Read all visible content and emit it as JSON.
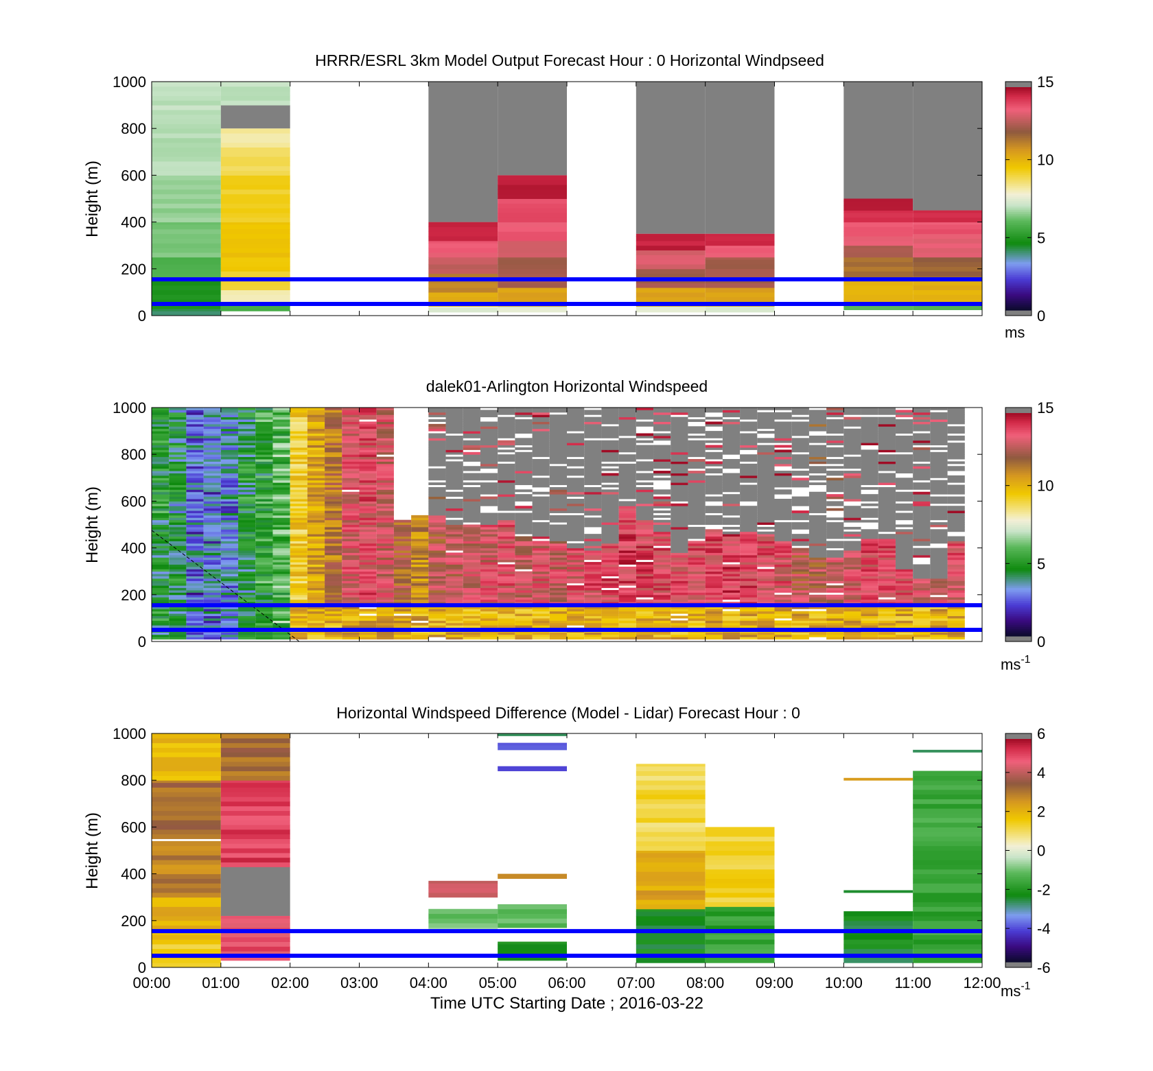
{
  "figure": {
    "xlabel": "Time UTC  Starting Date ; 2016-03-22",
    "x_ticks": [
      "00:00",
      "01:00",
      "02:00",
      "03:00",
      "04:00",
      "05:00",
      "06:00",
      "07:00",
      "08:00",
      "09:00",
      "10:00",
      "11:00",
      "12:00"
    ],
    "boundary_lines_m": [
      50,
      155
    ],
    "boundary_line_color": "#0000ff"
  },
  "chart_data": [
    {
      "type": "heatmap",
      "title": "HRRR/ESRL 3km Model Output   Forecast Hour : 0 Horizontal Windpseed",
      "xlabel": "",
      "ylabel": "Height (m)",
      "x_hours": [
        0,
        12
      ],
      "ylim": [
        0,
        1000
      ],
      "y_ticks": [
        0,
        200,
        400,
        600,
        800,
        1000
      ],
      "colorbar": {
        "min": 0,
        "max": 15,
        "ticks": [
          0,
          5,
          10,
          15
        ],
        "unit": "ms",
        "unit_sup": ""
      },
      "missing_color": "#808080",
      "columns": [
        {
          "start_hour": 0,
          "end_hour": 1,
          "layers": [
            [
              0,
              30,
              4.0
            ],
            [
              30,
              160,
              4.8
            ],
            [
              160,
              250,
              5.8
            ],
            [
              250,
              400,
              6.3
            ],
            [
              400,
              600,
              6.6
            ],
            [
              600,
              800,
              6.9
            ],
            [
              800,
              1000,
              7.0
            ]
          ]
        },
        {
          "start_hour": 1,
          "end_hour": 2,
          "layers": [
            [
              20,
              50,
              5.5
            ],
            [
              50,
              110,
              8.0
            ],
            [
              110,
              190,
              9.3
            ],
            [
              190,
              400,
              9.7
            ],
            [
              400,
              600,
              9.3
            ],
            [
              600,
              720,
              8.9
            ],
            [
              720,
              800,
              8.3
            ],
            [
              800,
              900,
              "missing"
            ],
            [
              900,
              1000,
              7.0
            ]
          ]
        },
        {
          "start_hour": 4,
          "end_hour": 5,
          "layers": [
            [
              15,
              40,
              7.5
            ],
            [
              40,
              100,
              10.2
            ],
            [
              100,
              180,
              11.2
            ],
            [
              180,
              250,
              12.8
            ],
            [
              250,
              320,
              13.5
            ],
            [
              320,
              400,
              14.6
            ],
            [
              400,
              1000,
              "missing"
            ]
          ]
        },
        {
          "start_hour": 5,
          "end_hour": 6,
          "layers": [
            [
              15,
              40,
              7.5
            ],
            [
              40,
              120,
              10.5
            ],
            [
              120,
              250,
              12.3
            ],
            [
              250,
              320,
              13.2
            ],
            [
              320,
              400,
              13.6
            ],
            [
              400,
              500,
              13.9
            ],
            [
              500,
              600,
              14.6
            ],
            [
              600,
              1000,
              "missing"
            ]
          ]
        },
        {
          "start_hour": 7,
          "end_hour": 8,
          "layers": [
            [
              15,
              40,
              7.5
            ],
            [
              40,
              120,
              10.5
            ],
            [
              120,
              200,
              12.3
            ],
            [
              200,
              280,
              13.2
            ],
            [
              280,
              350,
              14.6
            ],
            [
              350,
              1000,
              "missing"
            ]
          ]
        },
        {
          "start_hour": 8,
          "end_hour": 9,
          "layers": [
            [
              15,
              40,
              7.5
            ],
            [
              40,
              120,
              10.5
            ],
            [
              120,
              250,
              12.3
            ],
            [
              250,
              300,
              13.6
            ],
            [
              300,
              350,
              14.4
            ],
            [
              350,
              1000,
              "missing"
            ]
          ]
        },
        {
          "start_hour": 10,
          "end_hour": 11,
          "layers": [
            [
              25,
              50,
              6.0
            ],
            [
              50,
              150,
              10.2
            ],
            [
              150,
              250,
              11.5
            ],
            [
              250,
              300,
              12.3
            ],
            [
              300,
              400,
              13.5
            ],
            [
              400,
              450,
              14.2
            ],
            [
              450,
              500,
              14.6
            ],
            [
              500,
              1000,
              "missing"
            ]
          ]
        },
        {
          "start_hour": 11,
          "end_hour": 12,
          "layers": [
            [
              25,
              50,
              6.0
            ],
            [
              50,
              150,
              10.2
            ],
            [
              150,
              250,
              11.8
            ],
            [
              250,
              350,
              13.3
            ],
            [
              350,
              400,
              13.7
            ],
            [
              400,
              450,
              14.4
            ],
            [
              450,
              1000,
              "missing"
            ]
          ]
        }
      ]
    },
    {
      "type": "heatmap",
      "title": "dalek01-Arlington  Horizontal Windspeed",
      "xlabel": "",
      "ylabel": "Height (m)",
      "x_hours": [
        0,
        12
      ],
      "ylim": [
        0,
        1000
      ],
      "y_ticks": [
        0,
        200,
        400,
        600,
        800,
        1000
      ],
      "colorbar": {
        "min": 0,
        "max": 15,
        "ticks": [
          0,
          5,
          10,
          15
        ],
        "unit": "ms",
        "unit_sup": "-1"
      },
      "missing_color": "#808080",
      "time_step_min": 15,
      "data_end_hour": 11.9,
      "columns": [
        {
          "start_hour": 0.0,
          "base_speed": 4.6,
          "top_m": 1000,
          "missing_above_m": null
        },
        {
          "start_hour": 0.25,
          "base_speed": 4.3,
          "top_m": 1000,
          "missing_above_m": null
        },
        {
          "start_hour": 0.5,
          "base_speed": 2.8,
          "top_m": 1000,
          "missing_above_m": null
        },
        {
          "start_hour": 0.75,
          "base_speed": 3.0,
          "top_m": 1000,
          "missing_above_m": null
        },
        {
          "start_hour": 1.0,
          "base_speed": 3.2,
          "top_m": 1000,
          "missing_above_m": null
        },
        {
          "start_hour": 1.25,
          "base_speed": 4.5,
          "top_m": 1000,
          "missing_above_m": null
        },
        {
          "start_hour": 1.5,
          "base_speed": 5.2,
          "top_m": 1000,
          "missing_above_m": null
        },
        {
          "start_hour": 1.75,
          "base_speed": 5.6,
          "top_m": 1000,
          "missing_above_m": null
        },
        {
          "start_hour": 2.0,
          "base_speed": 9.4,
          "top_m": 1000,
          "missing_above_m": null
        },
        {
          "start_hour": 2.25,
          "base_speed": 10.5,
          "top_m": 1000,
          "missing_above_m": null
        },
        {
          "start_hour": 2.5,
          "base_speed": 11.5,
          "top_m": 1000,
          "missing_above_m": null
        },
        {
          "start_hour": 2.75,
          "base_speed": 13.3,
          "top_m": 1000,
          "missing_above_m": 900
        },
        {
          "start_hour": 3.0,
          "base_speed": 13.6,
          "top_m": 1000,
          "missing_above_m": 500
        },
        {
          "start_hour": 3.25,
          "base_speed": 13.0,
          "top_m": 1000,
          "missing_above_m": 550
        },
        {
          "start_hour": 3.5,
          "base_speed": 12.0,
          "top_m": 520,
          "missing_above_m": null
        },
        {
          "start_hour": 3.75,
          "base_speed": 11.0,
          "top_m": 540,
          "missing_above_m": null
        },
        {
          "start_hour": 4.0,
          "base_speed": 12.5,
          "top_m": 540,
          "missing_above_m": 1000
        },
        {
          "start_hour": 4.25,
          "base_speed": 12.8,
          "top_m": 500,
          "missing_above_m": 600
        },
        {
          "start_hour": 4.5,
          "base_speed": 13.0,
          "top_m": 500,
          "missing_above_m": 620
        },
        {
          "start_hour": 4.75,
          "base_speed": 13.2,
          "top_m": 500,
          "missing_above_m": 700
        },
        {
          "start_hour": 5.0,
          "base_speed": 13.4,
          "top_m": 520,
          "missing_above_m": 700
        },
        {
          "start_hour": 5.25,
          "base_speed": 13.0,
          "top_m": 460,
          "missing_above_m": 900
        },
        {
          "start_hour": 5.5,
          "base_speed": 13.2,
          "top_m": 440,
          "missing_above_m": 720
        },
        {
          "start_hour": 5.75,
          "base_speed": 13.0,
          "top_m": 430,
          "missing_above_m": 1000
        },
        {
          "start_hour": 6.0,
          "base_speed": 13.4,
          "top_m": 400,
          "missing_above_m": 1000
        },
        {
          "start_hour": 6.25,
          "base_speed": 13.6,
          "top_m": 390,
          "missing_above_m": 1000
        },
        {
          "start_hour": 6.5,
          "base_speed": 13.8,
          "top_m": 420,
          "missing_above_m": 1000
        },
        {
          "start_hour": 6.75,
          "base_speed": 14.0,
          "top_m": 580,
          "missing_above_m": 950
        },
        {
          "start_hour": 7.0,
          "base_speed": 13.8,
          "top_m": 520,
          "missing_above_m": 850
        },
        {
          "start_hour": 7.25,
          "base_speed": 13.6,
          "top_m": 470,
          "missing_above_m": 780
        },
        {
          "start_hour": 7.5,
          "base_speed": 13.5,
          "top_m": 380,
          "missing_above_m": 700
        },
        {
          "start_hour": 7.75,
          "base_speed": 13.6,
          "top_m": 430,
          "missing_above_m": 620
        },
        {
          "start_hour": 8.0,
          "base_speed": 13.8,
          "top_m": 480,
          "missing_above_m": 640
        },
        {
          "start_hour": 8.25,
          "base_speed": 14.0,
          "top_m": 460,
          "missing_above_m": 600
        },
        {
          "start_hour": 8.5,
          "base_speed": 13.8,
          "top_m": 470,
          "missing_above_m": 610
        },
        {
          "start_hour": 8.75,
          "base_speed": 13.6,
          "top_m": 460,
          "missing_above_m": 580
        },
        {
          "start_hour": 9.0,
          "base_speed": 13.4,
          "top_m": 430,
          "missing_above_m": 560
        },
        {
          "start_hour": 9.25,
          "base_speed": 12.6,
          "top_m": 400,
          "missing_above_m": 520
        },
        {
          "start_hour": 9.5,
          "base_speed": 12.4,
          "top_m": 360,
          "missing_above_m": 480
        },
        {
          "start_hour": 9.75,
          "base_speed": 12.8,
          "top_m": 360,
          "missing_above_m": 420
        },
        {
          "start_hour": 10.0,
          "base_speed": 13.2,
          "top_m": 390,
          "missing_above_m": 1000
        },
        {
          "start_hour": 10.25,
          "base_speed": 13.6,
          "top_m": 440,
          "missing_above_m": 1000
        },
        {
          "start_hour": 10.5,
          "base_speed": 13.8,
          "top_m": 440,
          "missing_above_m": 1000
        },
        {
          "start_hour": 10.75,
          "base_speed": 13.4,
          "top_m": 310,
          "missing_above_m": 1000
        },
        {
          "start_hour": 11.0,
          "base_speed": 13.2,
          "top_m": 270,
          "missing_above_m": 1000
        },
        {
          "start_hour": 11.25,
          "base_speed": 13.2,
          "top_m": 270,
          "missing_above_m": 1000
        },
        {
          "start_hour": 11.5,
          "base_speed": 13.4,
          "top_m": 430,
          "missing_above_m": 1000
        }
      ],
      "near_surface_speed": 10.2
    },
    {
      "type": "heatmap",
      "title": "Horizontal Windspeed Difference (Model - Lidar) Forecast Hour : 0",
      "xlabel": "Time UTC  Starting Date ; 2016-03-22",
      "ylabel": "Height (m)",
      "x_hours": [
        0,
        12
      ],
      "ylim": [
        0,
        1000
      ],
      "y_ticks": [
        0,
        200,
        400,
        600,
        800,
        1000
      ],
      "colorbar": {
        "min": -6,
        "max": 6,
        "ticks": [
          -6,
          -4,
          -2,
          0,
          2,
          4,
          6
        ],
        "unit": "ms",
        "unit_sup": "-1"
      },
      "missing_color": "#808080",
      "columns": [
        {
          "start_hour": 0,
          "end_hour": 1,
          "layers": [
            [
              0,
              120,
              1.6
            ],
            [
              120,
              300,
              2.2
            ],
            [
              300,
              540,
              3.0
            ],
            [
              540,
              550,
              "gap"
            ],
            [
              550,
              800,
              3.3
            ],
            [
              800,
              1000,
              2.0
            ]
          ]
        },
        {
          "start_hour": 1,
          "end_hour": 2,
          "layers": [
            [
              30,
              220,
              5.0
            ],
            [
              220,
              430,
              "missing"
            ],
            [
              430,
              800,
              5.2
            ],
            [
              800,
              1000,
              3.3
            ]
          ]
        },
        {
          "start_hour": 4,
          "end_hour": 5,
          "layers": [
            [
              150,
              250,
              -1.0
            ],
            [
              300,
              370,
              4.2
            ]
          ]
        },
        {
          "start_hour": 5,
          "end_hour": 6,
          "layers": [
            [
              30,
              50,
              -2.5
            ],
            [
              60,
              110,
              -2.2
            ],
            [
              170,
              270,
              -1.0
            ],
            [
              380,
              400,
              3.0
            ],
            [
              840,
              860,
              -4.4
            ],
            [
              930,
              960,
              -4.2
            ],
            [
              990,
              1000,
              -2.6
            ]
          ]
        },
        {
          "start_hour": 7,
          "end_hour": 8,
          "layers": [
            [
              20,
              250,
              -2.4
            ],
            [
              250,
              500,
              2.4
            ],
            [
              500,
              870,
              1.2
            ]
          ]
        },
        {
          "start_hour": 8,
          "end_hour": 9,
          "layers": [
            [
              20,
              260,
              -1.8
            ],
            [
              260,
              600,
              1.4
            ]
          ]
        },
        {
          "start_hour": 10,
          "end_hour": 11,
          "layers": [
            [
              20,
              240,
              -2.4
            ],
            [
              320,
              330,
              -2.4
            ],
            [
              800,
              810,
              2.5
            ]
          ]
        },
        {
          "start_hour": 11,
          "end_hour": 12,
          "layers": [
            [
              20,
              840,
              -1.7
            ],
            [
              920,
              930,
              -2.8
            ]
          ]
        }
      ]
    }
  ]
}
